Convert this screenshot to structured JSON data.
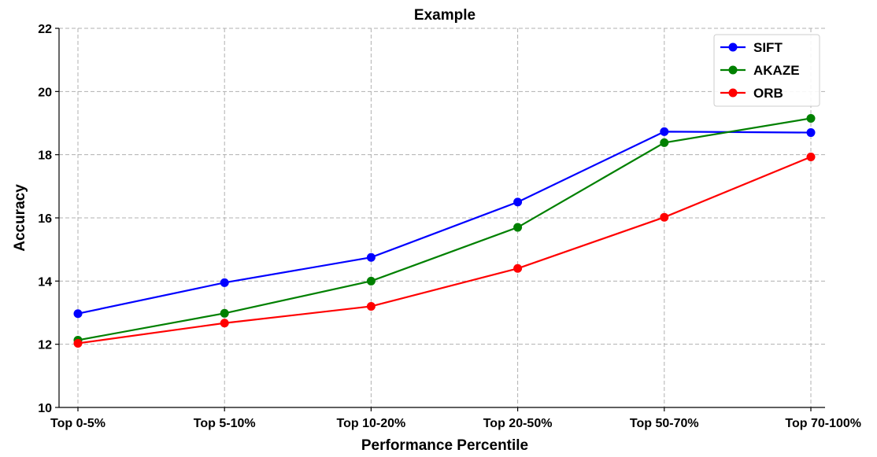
{
  "chart_data": {
    "type": "line",
    "title": "Example",
    "xlabel": "Performance Percentile",
    "ylabel": "Accuracy",
    "categories": [
      "Top 0-5%",
      "Top 5-10%",
      "Top 10-20%",
      "Top 20-50%",
      "Top 50-70%",
      "Top 70-100%"
    ],
    "ylim": [
      10,
      22
    ],
    "yticks": [
      10,
      12,
      14,
      16,
      18,
      20,
      22
    ],
    "grid": true,
    "legend_position": "top-right",
    "series": [
      {
        "name": "SIFT",
        "color": "#0000ff",
        "values": [
          12.97,
          13.95,
          14.75,
          16.5,
          18.73,
          18.7
        ]
      },
      {
        "name": "AKAZE",
        "color": "#008000",
        "values": [
          12.13,
          12.98,
          14.0,
          15.7,
          18.38,
          19.15
        ]
      },
      {
        "name": "ORB",
        "color": "#ff0000",
        "values": [
          12.03,
          12.67,
          13.2,
          14.4,
          16.02,
          17.93
        ]
      }
    ]
  }
}
